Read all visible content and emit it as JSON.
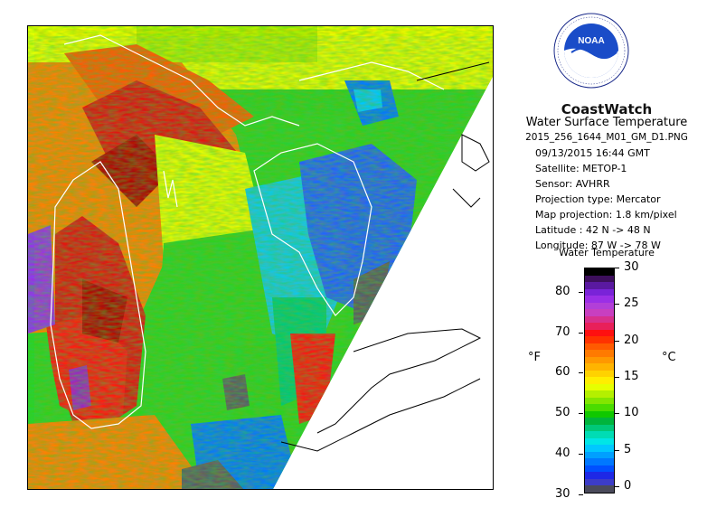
{
  "header": {
    "brand": "CoastWatch",
    "product": "Water Surface Temperature",
    "filename": "2015_256_1644_M01_GM_D1.PNG",
    "datetime": "09/13/2015    16:44 GMT",
    "satellite": "Satellite: METOP-1",
    "sensor": "Sensor: AVHRR",
    "projection_type": "Projection type:  Mercator",
    "map_projection": "Map projection: 1.8 km/pixel",
    "latitude": "Latitude : 42 N  -> 48 N",
    "longitude": "Longitude: 87 W  -> 78 W"
  },
  "logo": {
    "text": "NOAA",
    "ring_text": "NATIONAL OCEANIC AND ATMOSPHERIC ADMINISTRATION · U.S. DEPARTMENT OF COMMERCE"
  },
  "legend": {
    "title": "Water Temperature",
    "unit_f": "°F",
    "unit_c": "°C",
    "f_ticks": [
      "80",
      "70",
      "60",
      "50",
      "40",
      "30"
    ],
    "c_ticks": [
      "30",
      "25",
      "20",
      "15",
      "10",
      "5",
      "0"
    ],
    "colors": [
      "#000000",
      "#3d0f5c",
      "#5a19a0",
      "#7a23d8",
      "#9b2fe6",
      "#b23fd8",
      "#c83fc0",
      "#d8308c",
      "#e8205a",
      "#ff1010",
      "#ff3200",
      "#ff5a00",
      "#ff7a00",
      "#ff9800",
      "#ffb400",
      "#ffd200",
      "#ffee00",
      "#e6ff00",
      "#b4f000",
      "#82e600",
      "#4adc00",
      "#10c800",
      "#00b43c",
      "#00c878",
      "#00dcb4",
      "#00e6e6",
      "#00c8ff",
      "#00a0ff",
      "#0078ff",
      "#0050ff",
      "#1e28e6",
      "#3c3cc8",
      "#4a4a5a"
    ]
  },
  "map": {
    "palette": {
      "cold_blue": "#2060ff",
      "cyan": "#10c8e8",
      "green": "#30d020",
      "yellow": "#f0e800",
      "orange": "#ff8000",
      "red": "#e01010",
      "dark_red": "#b00000",
      "purple": "#a020c0",
      "no_data": "#5a5a66",
      "coastline": "#ffffff",
      "land_outline": "#000000"
    }
  }
}
